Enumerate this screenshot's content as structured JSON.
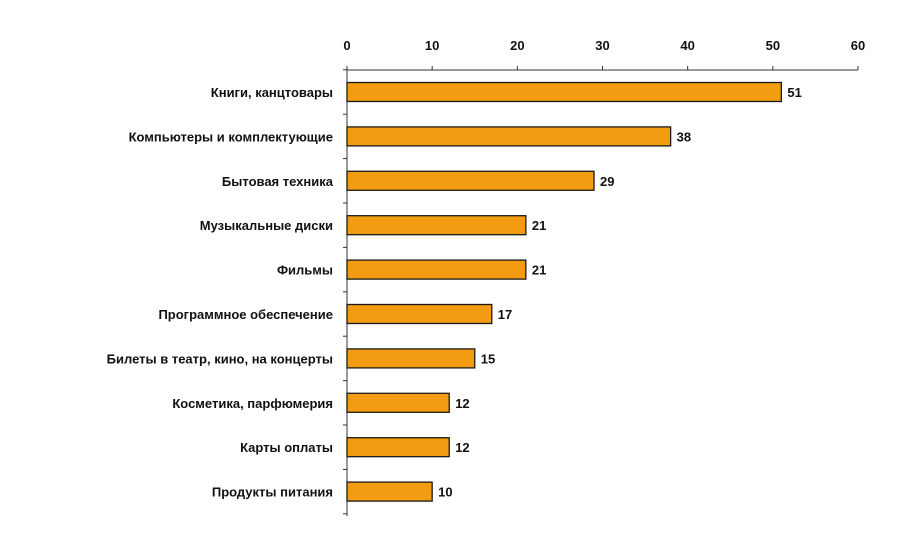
{
  "chart_data": {
    "type": "bar",
    "orientation": "horizontal",
    "categories": [
      "Книги, канцтовары",
      "Компьютеры и комплектующие",
      "Бытовая техника",
      "Музыкальные диски",
      "Фильмы",
      "Программное обеспечение",
      "Билеты в театр, кино, на концерты",
      "Косметика, парфюмерия",
      "Карты оплаты",
      "Продукты питания"
    ],
    "values": [
      51,
      38,
      29,
      21,
      21,
      17,
      15,
      12,
      12,
      10
    ],
    "xlim": [
      0,
      60
    ],
    "xticks": [
      0,
      10,
      20,
      30,
      40,
      50,
      60
    ],
    "axis_position": "top",
    "grid": false,
    "legend": "none",
    "data_labels": true,
    "colors": {
      "bar_fill": "#F39C12",
      "bar_stroke": "#1a1a1a",
      "text": "#111111",
      "axis": "#333333"
    }
  }
}
